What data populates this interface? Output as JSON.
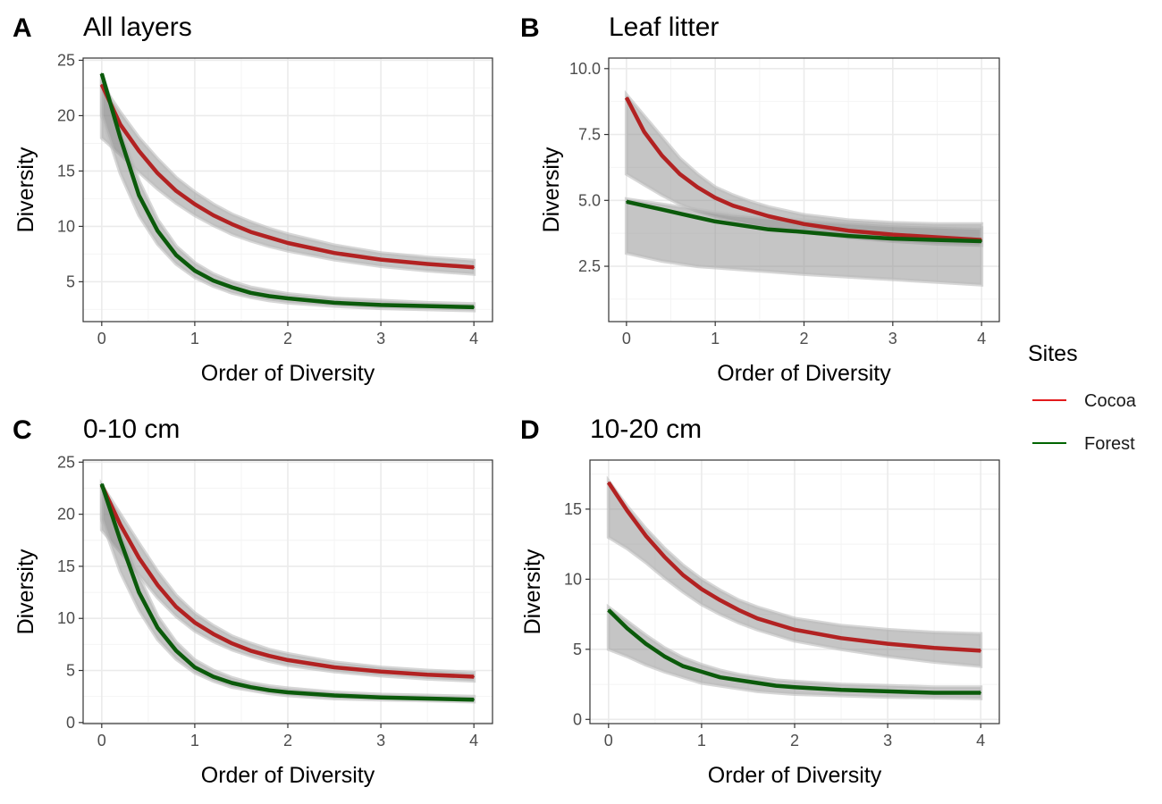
{
  "legend": {
    "title": "Sites",
    "position": "right",
    "entries": [
      {
        "label": "Cocoa",
        "color": "#e31a1c"
      },
      {
        "label": "Forest",
        "color": "#006400"
      }
    ]
  },
  "colors": {
    "cocoa_line": "#b22222",
    "forest_line": "#0b5a0b",
    "ribbon": "#8c8c8c",
    "grid_major": "#ebebeb",
    "grid_minor": "#f4f4f4",
    "panel_border": "#333333"
  },
  "chart_data": [
    {
      "type": "line",
      "panel_tag": "A",
      "title": "All layers",
      "xlabel": "Order of Diversity",
      "ylabel": "Diversity",
      "xlim": [
        -0.2,
        4.2
      ],
      "ylim": [
        1.4,
        25.2
      ],
      "xticks": [
        0,
        1,
        2,
        3,
        4
      ],
      "yticks": [
        5,
        10,
        15,
        20,
        25
      ],
      "xticklabels": [
        "0",
        "1",
        "2",
        "3",
        "4"
      ],
      "yticklabels": [
        "5",
        "10",
        "15",
        "20",
        "25"
      ],
      "x": [
        0,
        0.2,
        0.4,
        0.6,
        0.8,
        1,
        1.2,
        1.4,
        1.6,
        1.8,
        2,
        2.5,
        3,
        3.5,
        4
      ],
      "series": [
        {
          "name": "Cocoa",
          "values": [
            22.8,
            19.2,
            16.8,
            14.8,
            13.2,
            12.0,
            11.0,
            10.2,
            9.5,
            9.0,
            8.5,
            7.6,
            7.0,
            6.6,
            6.3
          ],
          "lower": [
            18.0,
            16.5,
            14.9,
            13.4,
            12.1,
            11.0,
            10.1,
            9.3,
            8.7,
            8.2,
            7.8,
            7.0,
            6.4,
            6.0,
            5.7
          ],
          "upper": [
            22.8,
            20.3,
            18.0,
            16.1,
            14.4,
            13.1,
            12.0,
            11.1,
            10.4,
            9.8,
            9.3,
            8.3,
            7.6,
            7.2,
            6.9
          ]
        },
        {
          "name": "Forest",
          "values": [
            23.8,
            18.0,
            12.8,
            9.6,
            7.4,
            6.0,
            5.1,
            4.5,
            4.0,
            3.7,
            3.5,
            3.1,
            2.9,
            2.8,
            2.7
          ],
          "lower": [
            20.0,
            14.8,
            11.0,
            8.4,
            6.6,
            5.4,
            4.6,
            4.0,
            3.6,
            3.3,
            3.1,
            2.8,
            2.6,
            2.5,
            2.4
          ],
          "upper": [
            23.8,
            18.8,
            14.1,
            10.6,
            8.2,
            6.7,
            5.7,
            5.0,
            4.5,
            4.2,
            3.9,
            3.5,
            3.3,
            3.1,
            3.0
          ]
        }
      ]
    },
    {
      "type": "line",
      "panel_tag": "B",
      "title": "Leaf litter",
      "xlabel": "Order of Diversity",
      "ylabel": "Diversity",
      "xlim": [
        -0.2,
        4.2
      ],
      "ylim": [
        0.4,
        10.4
      ],
      "xticks": [
        0,
        1,
        2,
        3,
        4
      ],
      "yticks": [
        2.5,
        5.0,
        7.5,
        10.0
      ],
      "xticklabels": [
        "0",
        "1",
        "2",
        "3",
        "4"
      ],
      "yticklabels": [
        "2.5",
        "5.0",
        "7.5",
        "10.0"
      ],
      "x": [
        0,
        0.2,
        0.4,
        0.6,
        0.8,
        1,
        1.2,
        1.4,
        1.6,
        1.8,
        2,
        2.5,
        3,
        3.5,
        4
      ],
      "series": [
        {
          "name": "Cocoa",
          "values": [
            8.9,
            7.6,
            6.7,
            6.0,
            5.5,
            5.1,
            4.8,
            4.6,
            4.4,
            4.25,
            4.1,
            3.85,
            3.7,
            3.6,
            3.5
          ],
          "lower": [
            6.0,
            5.6,
            5.2,
            4.85,
            4.6,
            4.4,
            4.25,
            4.1,
            4.0,
            3.9,
            3.8,
            3.6,
            3.45,
            3.35,
            3.3
          ],
          "upper": [
            9.0,
            8.2,
            7.4,
            6.6,
            6.0,
            5.5,
            5.2,
            4.95,
            4.75,
            4.6,
            4.45,
            4.25,
            4.15,
            4.1,
            4.1
          ]
        },
        {
          "name": "Forest",
          "values": [
            4.95,
            4.8,
            4.65,
            4.5,
            4.35,
            4.2,
            4.1,
            4.0,
            3.9,
            3.85,
            3.8,
            3.65,
            3.55,
            3.5,
            3.45
          ],
          "lower": [
            3.0,
            2.85,
            2.7,
            2.6,
            2.5,
            2.45,
            2.4,
            2.35,
            2.3,
            2.25,
            2.2,
            2.1,
            2.0,
            1.9,
            1.8
          ],
          "upper": [
            5.05,
            4.95,
            4.85,
            4.75,
            4.65,
            4.55,
            4.45,
            4.4,
            4.35,
            4.3,
            4.25,
            4.15,
            4.05,
            4.0,
            3.95
          ]
        }
      ]
    },
    {
      "type": "line",
      "panel_tag": "C",
      "title": "0-10 cm",
      "xlabel": "Order of Diversity",
      "ylabel": "Diversity",
      "xlim": [
        -0.2,
        4.2
      ],
      "ylim": [
        -0.1,
        25.2
      ],
      "xticks": [
        0,
        1,
        2,
        3,
        4
      ],
      "yticks": [
        0,
        5,
        10,
        15,
        20,
        25
      ],
      "xticklabels": [
        "0",
        "1",
        "2",
        "3",
        "4"
      ],
      "yticklabels": [
        "0",
        "5",
        "10",
        "15",
        "20",
        "25"
      ],
      "x": [
        0,
        0.2,
        0.4,
        0.6,
        0.8,
        1,
        1.2,
        1.4,
        1.6,
        1.8,
        2,
        2.5,
        3,
        3.5,
        4
      ],
      "series": [
        {
          "name": "Cocoa",
          "values": [
            22.8,
            19.0,
            15.8,
            13.2,
            11.1,
            9.6,
            8.5,
            7.6,
            6.9,
            6.4,
            6.0,
            5.3,
            4.9,
            4.6,
            4.4
          ],
          "lower": [
            18.5,
            16.4,
            14.2,
            12.0,
            10.2,
            8.8,
            7.8,
            7.0,
            6.4,
            5.9,
            5.5,
            4.9,
            4.5,
            4.2,
            4.0
          ],
          "upper": [
            22.8,
            20.0,
            17.2,
            14.5,
            12.2,
            10.5,
            9.3,
            8.3,
            7.6,
            7.0,
            6.6,
            5.8,
            5.3,
            5.0,
            4.8
          ]
        },
        {
          "name": "Forest",
          "values": [
            22.9,
            17.5,
            12.5,
            9.1,
            6.9,
            5.3,
            4.4,
            3.8,
            3.4,
            3.1,
            2.9,
            2.6,
            2.4,
            2.3,
            2.2
          ],
          "lower": [
            19.5,
            14.5,
            10.8,
            8.0,
            6.1,
            4.8,
            4.0,
            3.4,
            3.1,
            2.8,
            2.6,
            2.3,
            2.2,
            2.1,
            2.0
          ],
          "upper": [
            22.9,
            18.5,
            14.0,
            10.2,
            7.7,
            6.0,
            5.0,
            4.3,
            3.8,
            3.5,
            3.3,
            2.9,
            2.7,
            2.6,
            2.5
          ]
        }
      ]
    },
    {
      "type": "line",
      "panel_tag": "D",
      "title": "10-20 cm",
      "xlabel": "Order of Diversity",
      "ylabel": "Diversity",
      "xlim": [
        -0.2,
        4.2
      ],
      "ylim": [
        -0.3,
        18.5
      ],
      "xticks": [
        0,
        1,
        2,
        3,
        4
      ],
      "yticks": [
        0,
        5,
        10,
        15
      ],
      "xticklabels": [
        "0",
        "1",
        "2",
        "3",
        "4"
      ],
      "yticklabels": [
        "0",
        "5",
        "10",
        "15"
      ],
      "x": [
        0,
        0.2,
        0.4,
        0.6,
        0.8,
        1,
        1.2,
        1.4,
        1.6,
        1.8,
        2,
        2.5,
        3,
        3.5,
        4
      ],
      "series": [
        {
          "name": "Cocoa",
          "values": [
            16.9,
            14.9,
            13.1,
            11.6,
            10.3,
            9.3,
            8.5,
            7.8,
            7.2,
            6.8,
            6.4,
            5.8,
            5.4,
            5.1,
            4.9
          ],
          "lower": [
            13.0,
            12.2,
            11.2,
            10.1,
            9.1,
            8.2,
            7.5,
            6.9,
            6.4,
            6.0,
            5.6,
            5.0,
            4.5,
            4.1,
            3.8
          ],
          "upper": [
            17.0,
            15.2,
            13.6,
            12.2,
            11.0,
            10.0,
            9.2,
            8.5,
            8.0,
            7.6,
            7.2,
            6.7,
            6.4,
            6.2,
            6.1
          ]
        },
        {
          "name": "Forest",
          "values": [
            7.8,
            6.5,
            5.4,
            4.5,
            3.8,
            3.4,
            3.0,
            2.8,
            2.6,
            2.4,
            2.3,
            2.1,
            2.0,
            1.9,
            1.9
          ],
          "lower": [
            5.0,
            4.5,
            3.9,
            3.4,
            3.0,
            2.6,
            2.4,
            2.2,
            2.0,
            1.9,
            1.8,
            1.7,
            1.6,
            1.55,
            1.5
          ],
          "upper": [
            8.0,
            7.0,
            6.0,
            5.1,
            4.4,
            3.9,
            3.5,
            3.2,
            3.0,
            2.8,
            2.7,
            2.5,
            2.4,
            2.3,
            2.3
          ]
        }
      ]
    }
  ]
}
